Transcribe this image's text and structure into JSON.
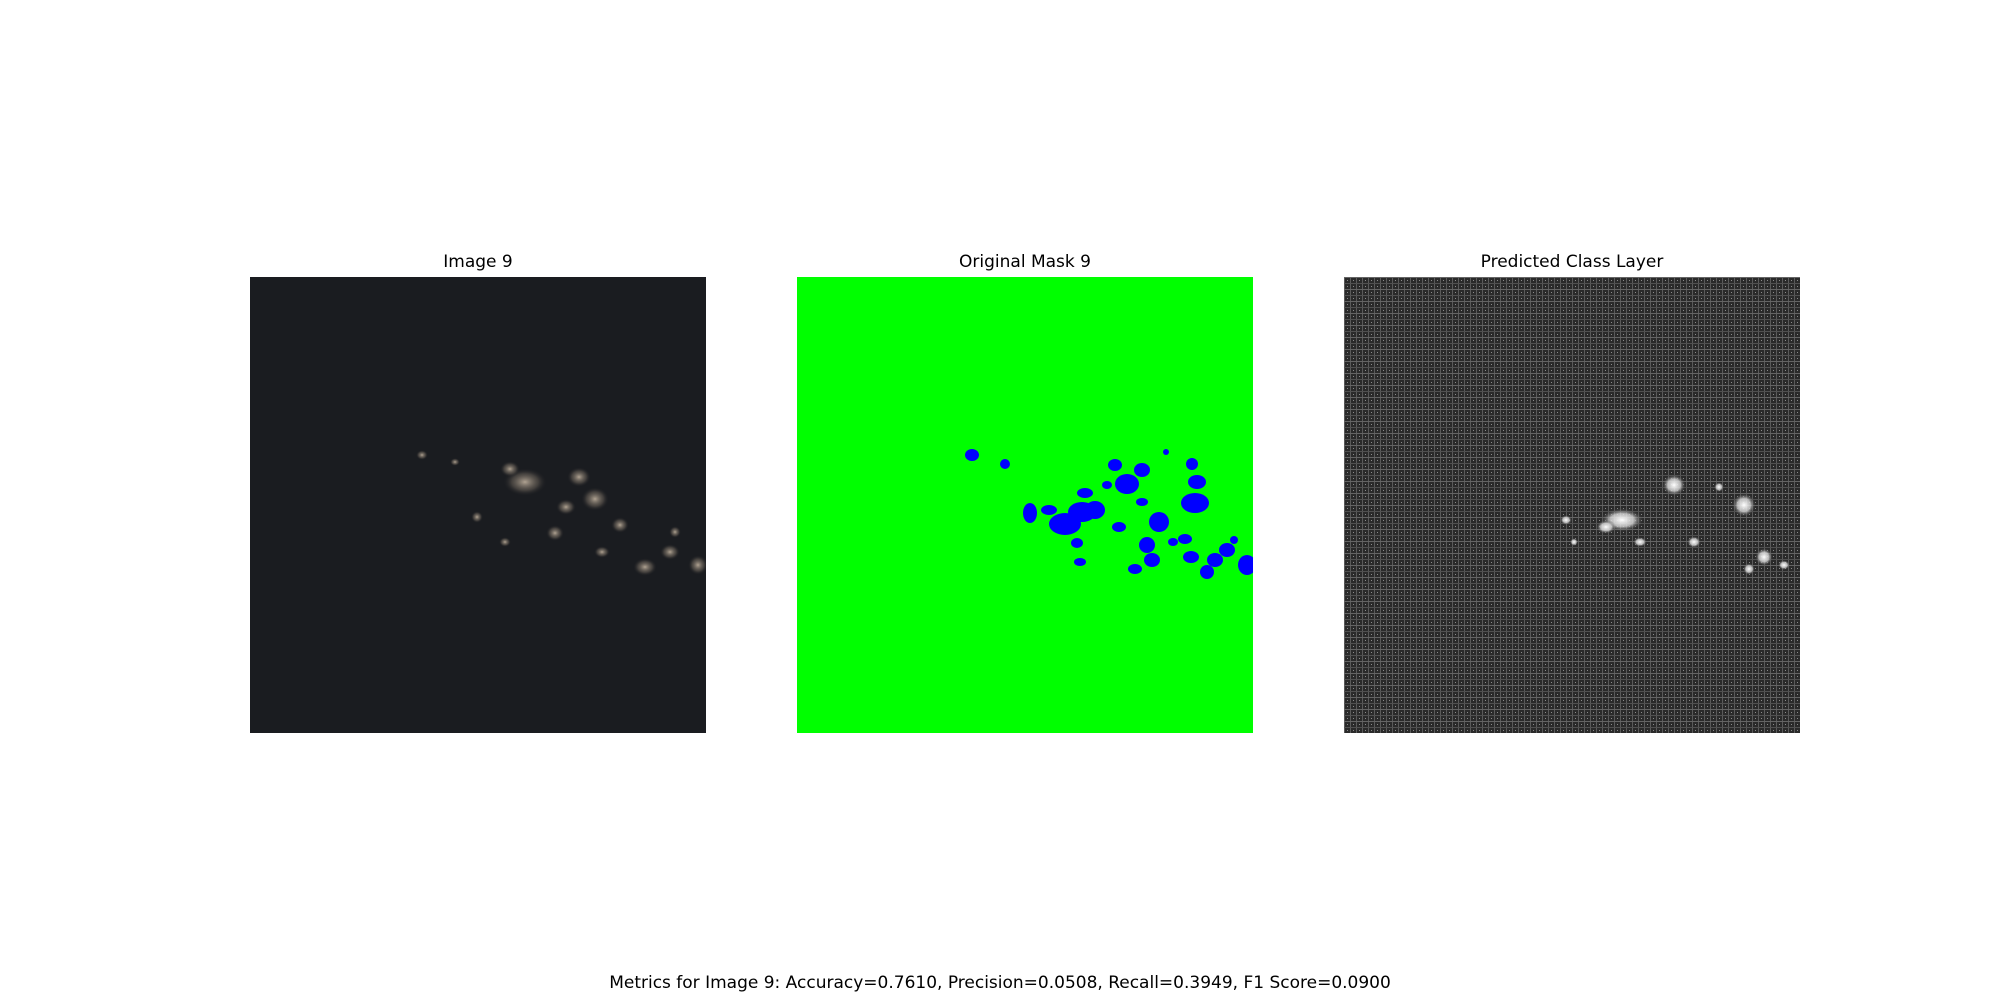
{
  "panels": [
    {
      "title": "Image 9",
      "kind": "satellite-image"
    },
    {
      "title": "Original Mask 9",
      "kind": "mask",
      "background_color": "#00ff00",
      "foreground_color": "#0000ff"
    },
    {
      "title": "Predicted Class Layer",
      "kind": "grayscale-prediction"
    }
  ],
  "metrics": {
    "text": "Metrics for Image 9: Accuracy=0.7610, Precision=0.0508, Recall=0.3949, F1 Score=0.0900",
    "image": "Image 9",
    "accuracy": 0.761,
    "precision": 0.0508,
    "recall": 0.3949,
    "f1_score": 0.09
  }
}
